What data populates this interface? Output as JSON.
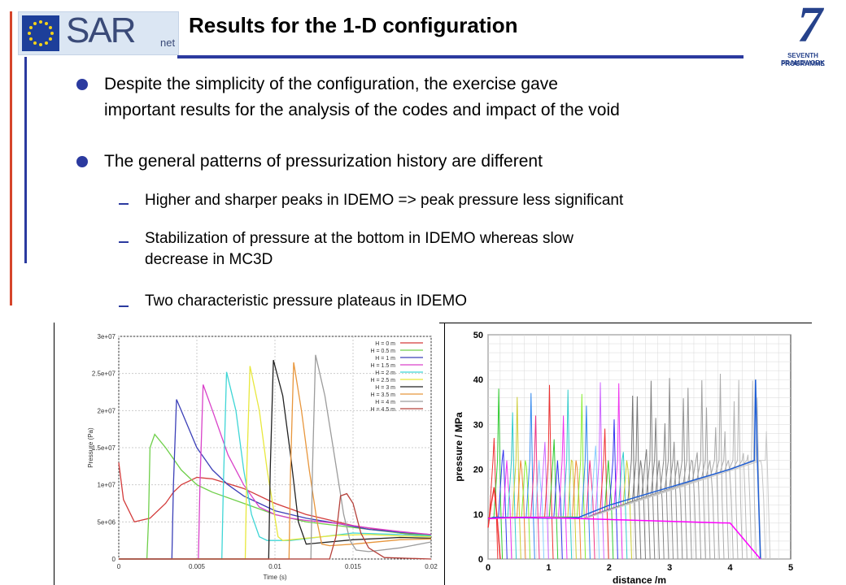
{
  "header": {
    "title": "Results for the 1-D configuration",
    "logo_text": "SAR",
    "logo_suffix": "net",
    "fp7_line1": "SEVENTH FRAMEWORK",
    "fp7_line2": "PROGRAMME",
    "fp7_number": "7"
  },
  "bullets": [
    {
      "lines": [
        "Despite the simplicity of the configuration, the exercise gave",
        "important results for the analysis of the codes and impact of the void"
      ]
    },
    {
      "lines": [
        "The general patterns of pressurization history are different"
      ]
    }
  ],
  "subbullets": [
    {
      "lines": [
        "Higher and sharper peaks in IDEMO => peak pressure less significant"
      ]
    },
    {
      "lines": [
        "Stabilization of pressure at the bottom in IDEMO whereas slow",
        "decrease in MC3D"
      ]
    },
    {
      "lines": [
        "Two characteristic pressure plateaus in IDEMO"
      ]
    }
  ],
  "colors": {
    "accent_blue": "#2b3a9f",
    "accent_red": "#d6452b"
  },
  "chart_data": [
    {
      "type": "line",
      "xlabel": "Time (s)",
      "ylabel": "Pressure (Pa)",
      "xlim": [
        0,
        0.02
      ],
      "ylim": [
        0,
        30000000
      ],
      "xticks": [
        0,
        0.005,
        0.01,
        0.015,
        0.02
      ],
      "xtick_labels": [
        "0",
        "0.005",
        "0.01",
        "0.015",
        "0.02"
      ],
      "yticks": [
        0,
        5000000,
        10000000,
        15000000,
        20000000,
        25000000,
        30000000
      ],
      "ytick_labels": [
        "0",
        "5e+06",
        "1e+07",
        "1.5e+07",
        "2e+07",
        "2.5e+07",
        "3e+07"
      ],
      "grid": true,
      "legend_position": "top-right",
      "series": [
        {
          "name": "H = 0 m",
          "color": "#d33b3b",
          "x": [
            0,
            0.0003,
            0.001,
            0.002,
            0.003,
            0.0035,
            0.004,
            0.005,
            0.006,
            0.008,
            0.01,
            0.012,
            0.015,
            0.018,
            0.02
          ],
          "y": [
            13000000,
            8000000,
            5000000,
            5500000,
            7500000,
            9000000,
            10000000,
            11000000,
            10800000,
            9500000,
            7500000,
            6000000,
            4500000,
            3500000,
            3000000
          ]
        },
        {
          "name": "H = 0.5 m",
          "color": "#6fcf4a",
          "x": [
            0,
            0.0018,
            0.0019,
            0.002,
            0.0023,
            0.003,
            0.004,
            0.005,
            0.006,
            0.008,
            0.01,
            0.012,
            0.014,
            0.016,
            0.018,
            0.02
          ],
          "y": [
            0,
            0,
            5000000,
            15000000,
            16800000,
            15000000,
            12000000,
            10000000,
            9000000,
            7500000,
            6000000,
            5000000,
            4500000,
            4000000,
            3500000,
            3200000
          ]
        },
        {
          "name": "H = 1 m",
          "color": "#3c40b8",
          "x": [
            0,
            0.0034,
            0.0035,
            0.0037,
            0.004,
            0.005,
            0.006,
            0.007,
            0.008,
            0.009,
            0.01,
            0.012,
            0.014,
            0.016,
            0.018,
            0.02
          ],
          "y": [
            0,
            0,
            10000000,
            21500000,
            20000000,
            15000000,
            12000000,
            10000000,
            8500000,
            7500000,
            6500000,
            5500000,
            4800000,
            4000000,
            3600000,
            3300000
          ]
        },
        {
          "name": "H = 1.5 m",
          "color": "#d942c9",
          "x": [
            0,
            0.0051,
            0.0052,
            0.0054,
            0.006,
            0.007,
            0.008,
            0.009,
            0.01,
            0.011,
            0.012,
            0.014,
            0.016,
            0.018,
            0.02
          ],
          "y": [
            0,
            0,
            10000000,
            23500000,
            20000000,
            14000000,
            10000000,
            7000000,
            6000000,
            5500000,
            5200000,
            4800000,
            4200000,
            3700000,
            3300000
          ]
        },
        {
          "name": "H = 2 m",
          "color": "#3fd6d6",
          "x": [
            0,
            0.0066,
            0.0067,
            0.0069,
            0.0075,
            0.008,
            0.0085,
            0.009,
            0.0095,
            0.011,
            0.013,
            0.015,
            0.018,
            0.02
          ],
          "y": [
            0,
            0,
            10000000,
            25200000,
            20000000,
            12000000,
            6000000,
            3000000,
            2500000,
            2500000,
            3000000,
            3500000,
            3300000,
            3100000
          ]
        },
        {
          "name": "H = 2.5 m",
          "color": "#e8e83c",
          "x": [
            0,
            0.0081,
            0.0082,
            0.0084,
            0.009,
            0.0095,
            0.0102,
            0.0105,
            0.012,
            0.014,
            0.016,
            0.018,
            0.02
          ],
          "y": [
            0,
            0,
            12000000,
            26000000,
            20000000,
            12000000,
            3000000,
            2500000,
            2800000,
            3200000,
            3300000,
            3100000,
            3000000
          ]
        },
        {
          "name": "H = 3 m",
          "color": "#222222",
          "x": [
            0,
            0.0096,
            0.0097,
            0.0099,
            0.0105,
            0.011,
            0.0115,
            0.012,
            0.013,
            0.015,
            0.018,
            0.02
          ],
          "y": [
            0,
            0,
            12000000,
            26800000,
            22000000,
            14000000,
            5000000,
            2000000,
            2200000,
            2600000,
            2900000,
            2800000
          ]
        },
        {
          "name": "H = 3.5 m",
          "color": "#e8963c",
          "x": [
            0,
            0.0109,
            0.011,
            0.0112,
            0.0117,
            0.0122,
            0.0127,
            0.013,
            0.0135,
            0.015,
            0.018,
            0.02
          ],
          "y": [
            0,
            0,
            12000000,
            26500000,
            20000000,
            12000000,
            5000000,
            2000000,
            1800000,
            2000000,
            2600000,
            2700000
          ]
        },
        {
          "name": "H = 4 m",
          "color": "#9c9c9c",
          "x": [
            0,
            0.0123,
            0.0124,
            0.0126,
            0.0132,
            0.0138,
            0.0144,
            0.0148,
            0.0152,
            0.016,
            0.018,
            0.02
          ],
          "y": [
            0,
            0,
            12000000,
            27500000,
            22000000,
            14000000,
            6000000,
            2500000,
            1200000,
            1000000,
            1500000,
            2300000
          ]
        },
        {
          "name": "H = 4.5 m",
          "color": "#b5413b",
          "x": [
            0,
            0.0135,
            0.0139,
            0.0142,
            0.0146,
            0.015,
            0.0155,
            0.016,
            0.017,
            0.02
          ],
          "y": [
            0,
            0,
            3000000,
            8500000,
            8800000,
            7500000,
            3500000,
            1500000,
            200000,
            0
          ]
        }
      ]
    },
    {
      "type": "line",
      "xlabel": "distance /m",
      "ylabel": "pressure / MPa",
      "xlim": [
        0,
        5
      ],
      "ylim": [
        0,
        50
      ],
      "xticks": [
        0,
        1,
        2,
        3,
        4,
        5
      ],
      "xtick_labels": [
        "0",
        "1",
        "2",
        "3",
        "4",
        "5"
      ],
      "yticks": [
        0,
        10,
        20,
        30,
        40,
        50
      ],
      "ytick_labels": [
        "0",
        "10",
        "20",
        "30",
        "40",
        "50"
      ],
      "grid": true,
      "series_count": 60,
      "plateau_high_mpa": 22,
      "plateau_low_mpa": 9,
      "max_distance": 4.5,
      "series": [
        {
          "color": "#e33",
          "x": [
            0,
            0.02,
            0.05,
            0.1,
            0.15,
            0.2
          ],
          "y": [
            7,
            9,
            12,
            16,
            9,
            0
          ]
        },
        {
          "color": "#1f5fd6",
          "x": [
            0,
            0.1,
            0.5,
            1.0,
            1.5,
            2.0,
            2.5,
            3.0,
            3.5,
            4.0,
            4.3,
            4.4,
            4.42,
            4.45,
            4.5
          ],
          "y": [
            9,
            9.3,
            9.2,
            9.1,
            9.3,
            12,
            14,
            16,
            18,
            20,
            21.5,
            22,
            40,
            22,
            0
          ]
        },
        {
          "color": "#ff00ff",
          "x": [
            0,
            0.5,
            1,
            1.5,
            2,
            2.5,
            3,
            3.5,
            4,
            4.5
          ],
          "y": [
            9,
            9.3,
            9.2,
            9,
            8.8,
            8.6,
            8.4,
            8.2,
            8,
            0
          ]
        }
      ]
    }
  ]
}
